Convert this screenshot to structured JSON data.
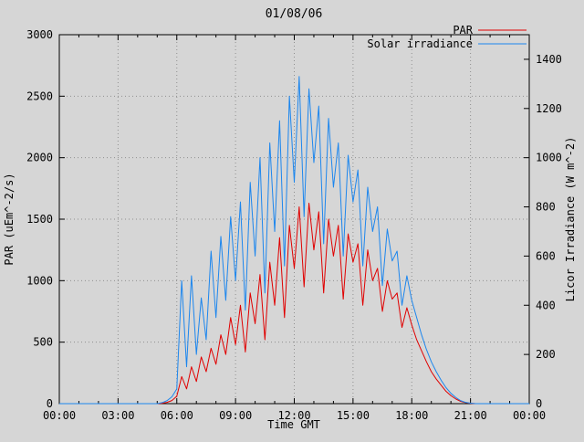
{
  "chart_data": {
    "type": "line",
    "title": "01/08/06",
    "xlabel": "Time GMT",
    "ylabel_left": "PAR (uEm^-2/s)",
    "ylabel_right": "Licor Irradiance (W m^-2)",
    "xlim": [
      0,
      24
    ],
    "ylim_left": [
      0,
      3000
    ],
    "ylim_right": [
      0,
      1500
    ],
    "x_tick_hours": [
      0,
      3,
      6,
      9,
      12,
      15,
      18,
      21,
      24
    ],
    "x_tick_labels": [
      "00:00",
      "03:00",
      "06:00",
      "09:00",
      "12:00",
      "15:00",
      "18:00",
      "21:00",
      "00:00"
    ],
    "yticks_left": [
      0,
      500,
      1000,
      1500,
      2000,
      2500,
      3000
    ],
    "yticks_right": [
      0,
      200,
      400,
      600,
      800,
      1000,
      1200,
      1400
    ],
    "grid": true,
    "legend_position": "top-right",
    "x_hours": [
      0,
      0.25,
      0.5,
      0.75,
      1,
      1.25,
      1.5,
      1.75,
      2,
      2.25,
      2.5,
      2.75,
      3,
      3.25,
      3.5,
      3.75,
      4,
      4.25,
      4.5,
      4.75,
      5,
      5.25,
      5.5,
      5.75,
      6,
      6.25,
      6.5,
      6.75,
      7,
      7.25,
      7.5,
      7.75,
      8,
      8.25,
      8.5,
      8.75,
      9,
      9.25,
      9.5,
      9.75,
      10,
      10.25,
      10.5,
      10.75,
      11,
      11.25,
      11.5,
      11.75,
      12,
      12.25,
      12.5,
      12.75,
      13,
      13.25,
      13.5,
      13.75,
      14,
      14.25,
      14.5,
      14.75,
      15,
      15.25,
      15.5,
      15.75,
      16,
      16.25,
      16.5,
      16.75,
      17,
      17.25,
      17.5,
      17.75,
      18,
      18.25,
      18.5,
      18.75,
      19,
      19.25,
      19.5,
      19.75,
      20,
      20.25,
      20.5,
      20.75,
      21,
      21.25,
      21.5,
      21.75,
      22,
      22.25,
      22.5,
      22.75,
      23,
      23.25,
      23.5,
      23.75,
      24
    ],
    "series": [
      {
        "name": "PAR",
        "axis": "left",
        "color": "#e00000",
        "values": [
          0,
          0,
          0,
          0,
          0,
          0,
          0,
          0,
          0,
          0,
          0,
          0,
          0,
          0,
          0,
          0,
          0,
          0,
          0,
          0,
          0,
          3,
          10,
          25,
          60,
          220,
          120,
          300,
          180,
          380,
          260,
          450,
          320,
          560,
          400,
          700,
          480,
          800,
          420,
          900,
          650,
          1050,
          520,
          1150,
          800,
          1350,
          700,
          1450,
          1100,
          1600,
          950,
          1630,
          1250,
          1560,
          900,
          1500,
          1200,
          1450,
          850,
          1380,
          1150,
          1300,
          800,
          1250,
          1000,
          1100,
          750,
          1000,
          850,
          900,
          620,
          780,
          640,
          520,
          430,
          340,
          260,
          200,
          150,
          100,
          65,
          38,
          18,
          8,
          3,
          0,
          0,
          0,
          0,
          0,
          0,
          0,
          0,
          0,
          0,
          0,
          0
        ]
      },
      {
        "name": "Solar irradiance",
        "axis": "right",
        "color": "#1c86ee",
        "values": [
          0,
          0,
          0,
          0,
          0,
          0,
          0,
          0,
          0,
          0,
          0,
          0,
          0,
          0,
          0,
          0,
          0,
          0,
          0,
          0,
          0,
          4,
          12,
          28,
          60,
          500,
          150,
          520,
          200,
          430,
          260,
          620,
          350,
          680,
          420,
          760,
          500,
          820,
          380,
          900,
          600,
          1000,
          450,
          1060,
          700,
          1150,
          560,
          1250,
          900,
          1330,
          760,
          1280,
          980,
          1210,
          650,
          1160,
          880,
          1060,
          600,
          1010,
          820,
          950,
          560,
          880,
          700,
          800,
          480,
          710,
          580,
          620,
          400,
          520,
          420,
          350,
          280,
          220,
          170,
          130,
          95,
          65,
          42,
          25,
          12,
          5,
          2,
          0,
          0,
          0,
          0,
          0,
          0,
          0,
          0,
          0,
          0,
          0,
          0
        ]
      }
    ],
    "colors": {
      "background": "#d6d6d6",
      "plot_border": "#000000",
      "grid": "#8f8f8f"
    }
  }
}
